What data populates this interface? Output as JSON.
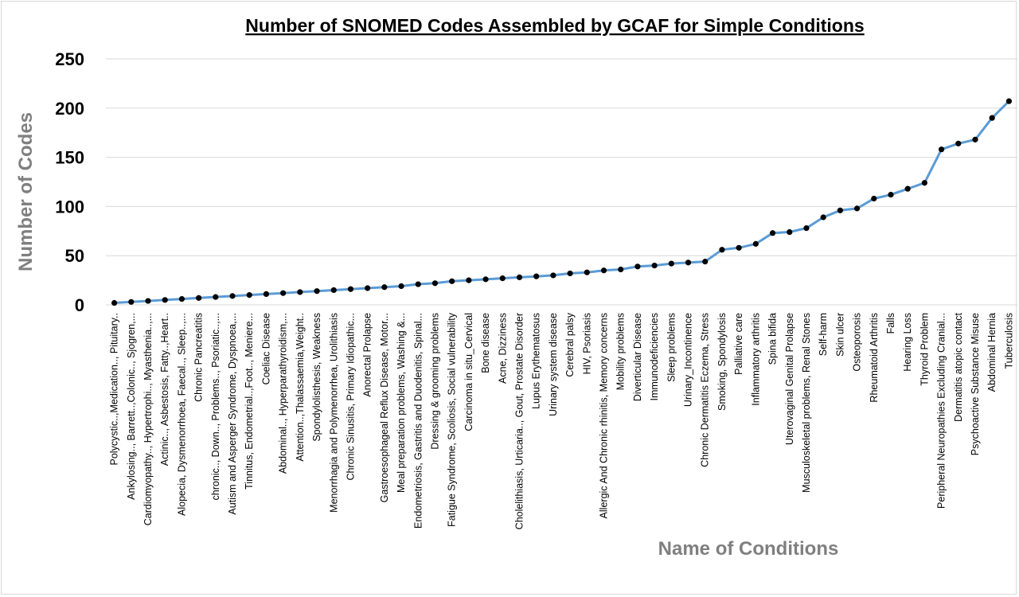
{
  "chart_data": {
    "type": "line",
    "title": "Number of SNOMED Codes Assembled by GCAF for Simple Conditions",
    "xlabel": "Name of Conditions",
    "ylabel": "Number of Codes",
    "ylim": [
      0,
      250
    ],
    "yticks": [
      "0",
      "50",
      "100",
      "150",
      "200",
      "250"
    ],
    "grid": true,
    "legend": "none",
    "line_color": "#5b9bd5",
    "marker_color": "#000000",
    "categories": [
      "Polycystic..,Medication.., Pituitary..",
      "Ankylosing.., Barrett..,Colonic.., Sjogren,...",
      "Cardiomyopathy.., Hypertrophi.., Myasthenia..,...",
      "Actinic.., Asbestosis, Fatty..,Heart..",
      "Alopecia, Dysmenorrhoea, Faecal.., Sleep..,...",
      "Chronic Pancreatitis",
      "chronic.., Down.., Problems.., Psoriatic..,...",
      "Autism and Asperger Syndrome, Dyspnoea,...",
      "Tinnitus, Endometrial..,Foot.., Meniere...",
      "Coeliac Disease",
      "Abdominal.., Hyperparathyroidism,...",
      "Attention..,Thalassaemia,Weight..",
      "Spondylolisthesis, Weakness",
      "Menorrhagia and Polymenorrhea, Urolithiasis",
      "Chronic Sinusitis, Primary Idiopathic...",
      "Anorectal Prolapse",
      "Gastroesophageal Reflux Disease, Motor...",
      "Meal preparation problems, Washing &...",
      "Endometriosis, Gastritis and Duodenitis, Spinal...",
      "Dressing & grooming problems",
      "Fatigue Syndrome, Scoliosis, Social vulnerability",
      "Carcinoma in situ_Cervical",
      "Bone disease",
      "Acne, Dizziness",
      "Cholelithiasis, Urticaria.., Gout, Prostate Disorder",
      "Lupus Erythematosus",
      "Urinary system disease",
      "Cerebral palsy",
      "HIV, Psoriasis",
      "Allergic And Chronic rhinitis, Memory concerns",
      "Mobility problems",
      "Diverticular Disease",
      "Immunodeficiencies",
      "Sleep problems",
      "Urinary_Incontinence",
      "Chronic Dermatitis Eczema, Stress",
      "Smoking, Spondylosis",
      "Palliative care",
      "Inflammatory arthritis",
      "Spina bifida",
      "Uterovaginal Genital Prolapse",
      "Musculoskeletal problems, Renal Stones",
      "Self-harm",
      "Skin ulcer",
      "Osteoporosis",
      "Rheumatoid Arthritis",
      "Falls",
      "Hearing Loss",
      "Thyroid Problem",
      "Peripheral Neuropathies Excluding Cranial...",
      "Dermatitis atopic contact",
      "Psychoactive Substance Misuse",
      "Abdominal Hernia",
      "Tuberculosis"
    ],
    "series": [
      {
        "values": [
          2,
          3,
          4,
          5,
          6,
          7,
          8,
          9,
          10,
          11,
          12,
          13,
          14,
          15,
          16,
          17,
          18,
          19,
          21,
          22,
          24,
          25,
          26,
          27,
          28,
          29,
          30,
          32,
          33,
          35,
          36,
          39,
          40,
          42,
          43,
          44,
          56,
          58,
          62,
          73,
          74,
          78,
          89,
          96,
          98,
          108,
          112,
          118,
          124,
          158,
          164,
          168,
          190,
          207
        ]
      }
    ]
  }
}
